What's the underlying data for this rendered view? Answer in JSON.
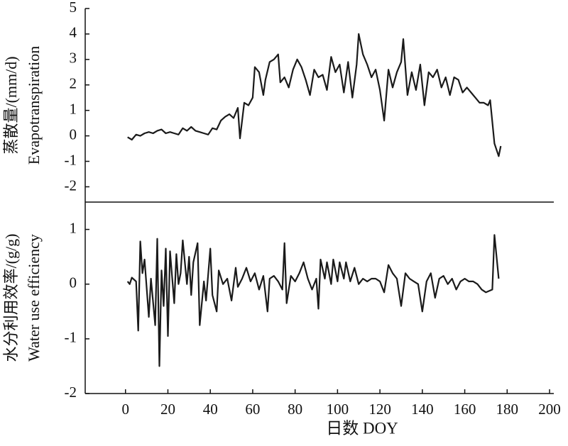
{
  "chart_data": [
    {
      "type": "line",
      "ylabel": [
        "蒸散量/(mm/d)",
        "Evapotranspiration"
      ],
      "x": [
        1,
        3,
        5,
        7,
        9,
        11,
        13,
        15,
        17,
        19,
        21,
        23,
        25,
        27,
        29,
        31,
        33,
        35,
        37,
        39,
        41,
        43,
        45,
        47,
        49,
        51,
        53,
        54,
        56,
        58,
        60,
        61,
        63,
        65,
        66,
        68,
        70,
        72,
        73,
        75,
        77,
        79,
        81,
        83,
        85,
        87,
        89,
        91,
        93,
        95,
        97,
        99,
        101,
        103,
        105,
        107,
        109,
        110,
        112,
        114,
        116,
        118,
        120,
        122,
        124,
        126,
        128,
        130,
        131,
        133,
        135,
        137,
        139,
        141,
        143,
        145,
        147,
        149,
        151,
        153,
        155,
        157,
        159,
        161,
        163,
        165,
        167,
        169,
        171,
        172,
        174,
        176,
        177
      ],
      "values": [
        -0.05,
        -0.15,
        0.05,
        0.0,
        0.1,
        0.15,
        0.1,
        0.2,
        0.25,
        0.1,
        0.15,
        0.1,
        0.05,
        0.3,
        0.2,
        0.35,
        0.2,
        0.15,
        0.1,
        0.05,
        0.3,
        0.25,
        0.6,
        0.75,
        0.85,
        0.7,
        1.1,
        -0.1,
        1.3,
        1.2,
        1.5,
        2.7,
        2.5,
        1.6,
        2.2,
        2.9,
        3.0,
        3.2,
        2.1,
        2.3,
        1.9,
        2.6,
        3.0,
        2.7,
        2.2,
        1.6,
        2.6,
        2.3,
        2.4,
        1.8,
        3.1,
        2.5,
        2.8,
        1.7,
        2.9,
        1.5,
        2.8,
        4.0,
        3.2,
        2.8,
        2.3,
        2.6,
        1.8,
        0.6,
        2.6,
        1.9,
        2.5,
        2.9,
        3.8,
        1.6,
        2.5,
        1.8,
        2.8,
        1.2,
        2.5,
        2.3,
        2.6,
        1.9,
        2.3,
        1.6,
        2.3,
        2.2,
        1.7,
        1.9,
        1.7,
        1.5,
        1.3,
        1.3,
        1.2,
        1.4,
        -0.3,
        -0.8,
        -0.4
      ],
      "color": "#1a1a1a",
      "xlim": [
        -19,
        202
      ],
      "ylim": [
        -2.6,
        5
      ],
      "yticks": [
        -2,
        -1,
        0,
        1,
        2,
        3,
        4,
        5
      ]
    },
    {
      "type": "line",
      "ylabel": [
        "水分利用效率/(g/g)",
        "Water use efficiency"
      ],
      "xlabel": "日数 DOY",
      "x": [
        1,
        2,
        3,
        5,
        6,
        7,
        8,
        9,
        11,
        12,
        14,
        15,
        16,
        17,
        18,
        19,
        20,
        21,
        23,
        24,
        25,
        26,
        27,
        29,
        30,
        31,
        32,
        34,
        35,
        37,
        38,
        40,
        41,
        43,
        44,
        46,
        48,
        50,
        52,
        53,
        55,
        57,
        59,
        61,
        63,
        65,
        67,
        68,
        70,
        72,
        74,
        75,
        76,
        78,
        80,
        82,
        84,
        86,
        88,
        90,
        91,
        92,
        94,
        95,
        97,
        98,
        100,
        101,
        103,
        104,
        106,
        108,
        110,
        112,
        114,
        116,
        118,
        120,
        122,
        124,
        126,
        128,
        130,
        132,
        134,
        136,
        138,
        140,
        142,
        144,
        146,
        148,
        150,
        152,
        154,
        156,
        158,
        160,
        162,
        164,
        166,
        168,
        170,
        173,
        174,
        176
      ],
      "values": [
        0.05,
        0.0,
        0.12,
        0.05,
        -0.85,
        0.78,
        0.2,
        0.45,
        -0.6,
        0.1,
        -0.75,
        0.83,
        -1.5,
        0.25,
        -0.4,
        0.65,
        -0.95,
        0.6,
        -0.35,
        0.55,
        0.0,
        0.2,
        0.8,
        0.0,
        0.5,
        -0.2,
        0.4,
        0.75,
        -0.75,
        0.05,
        -0.3,
        0.65,
        -0.2,
        -0.5,
        0.25,
        0.0,
        0.1,
        -0.3,
        0.3,
        -0.05,
        0.1,
        0.3,
        0.05,
        0.2,
        -0.1,
        0.15,
        -0.5,
        0.1,
        0.15,
        0.05,
        -0.1,
        0.75,
        -0.35,
        0.15,
        0.05,
        0.2,
        0.4,
        0.1,
        -0.1,
        0.1,
        -0.45,
        0.45,
        0.1,
        0.4,
        0.0,
        0.45,
        0.05,
        0.4,
        0.1,
        0.4,
        0.05,
        0.3,
        0.0,
        0.1,
        0.05,
        0.1,
        0.1,
        0.05,
        -0.15,
        0.35,
        0.2,
        0.1,
        -0.4,
        0.2,
        0.1,
        0.05,
        0.0,
        -0.5,
        0.05,
        0.2,
        -0.25,
        0.1,
        0.15,
        0.0,
        0.1,
        -0.1,
        0.05,
        0.1,
        0.05,
        0.05,
        0.0,
        -0.1,
        -0.15,
        -0.1,
        0.9,
        0.1
      ],
      "color": "#1a1a1a",
      "xlim": [
        -19,
        202
      ],
      "xticks": [
        0,
        20,
        40,
        60,
        80,
        100,
        120,
        140,
        160,
        180,
        200
      ],
      "ylim": [
        -2,
        1.5
      ],
      "yticks": [
        -2,
        -1,
        0,
        1
      ]
    }
  ]
}
